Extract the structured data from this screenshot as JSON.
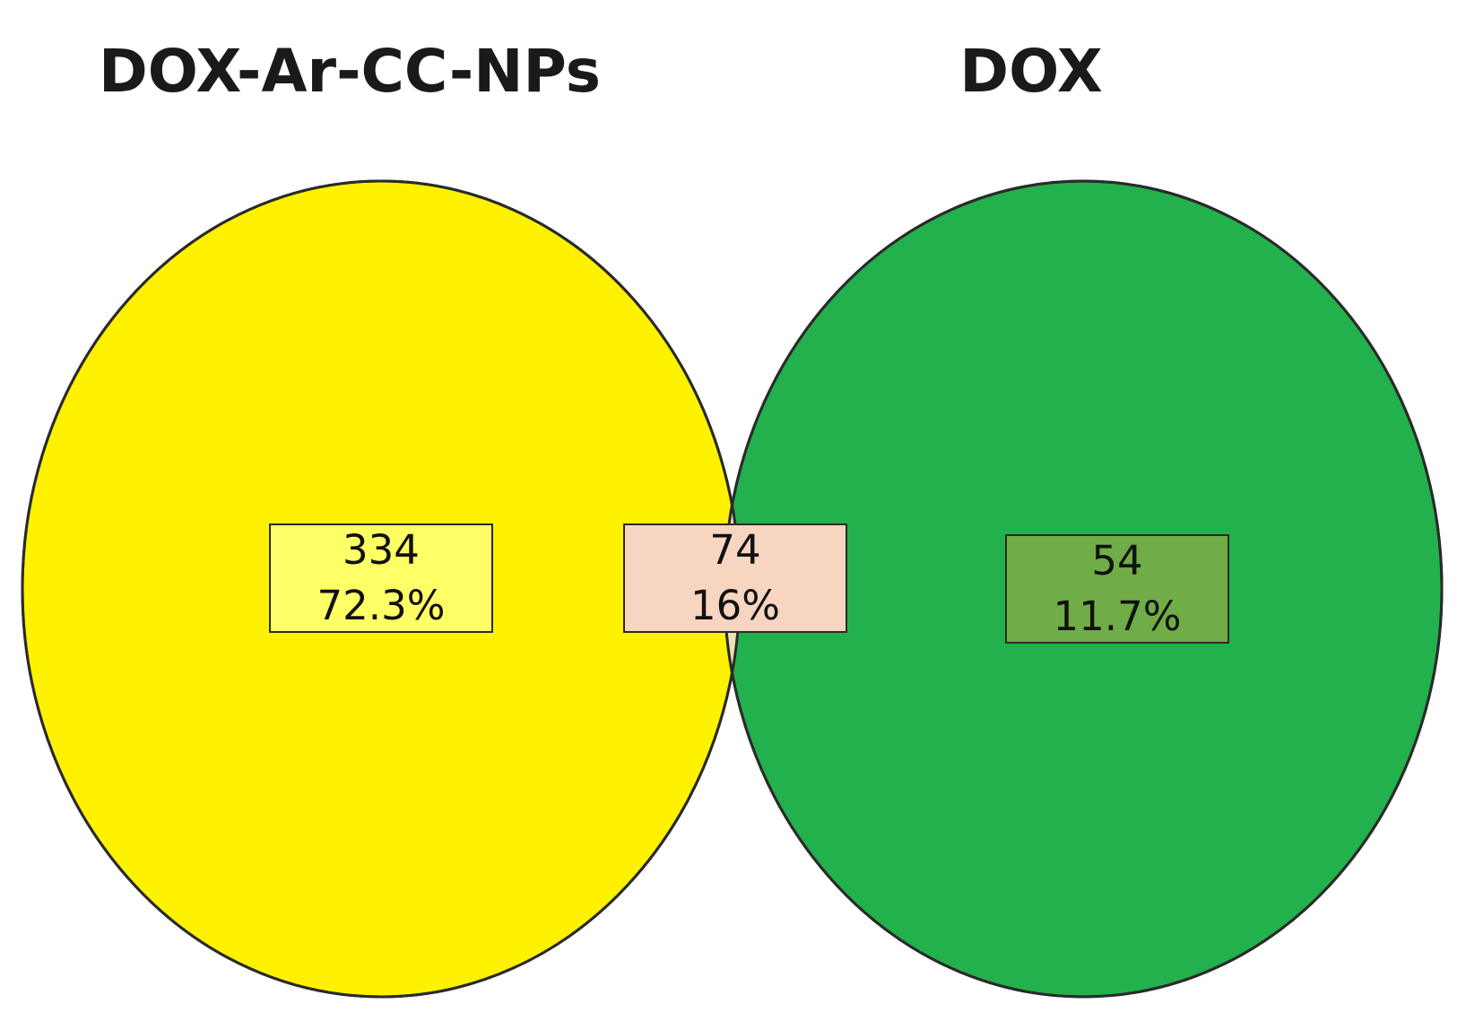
{
  "sets": [
    {
      "name": "DOX-Ar-CC-NPs",
      "color": "#FFF200"
    },
    {
      "name": "DOX",
      "color": "#22B14C"
    }
  ],
  "overlap_color": "#EDE0B5",
  "outline_color": "#2a2a2a",
  "regions": {
    "left_only": {
      "count": "334",
      "percent": "72.3%",
      "box_color": "#FFFF66"
    },
    "intersection": {
      "count": "74",
      "percent": "16%",
      "box_color": "#F8D5C0"
    },
    "right_only": {
      "count": "54",
      "percent": "11.7%",
      "box_color": "#70AD47"
    }
  }
}
